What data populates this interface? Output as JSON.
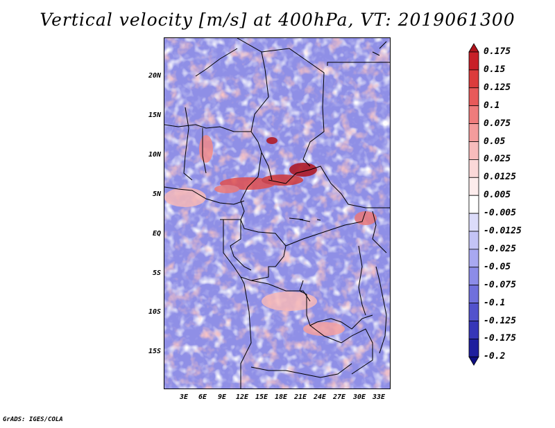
{
  "title": "Vertical velocity [m/s] at 400hPa, VT: 2019061300",
  "footer": "GrADS: IGES/COLA",
  "latitude_labels": [
    "20N",
    "15N",
    "10N",
    "5N",
    "EQ",
    "5S",
    "10S",
    "15S"
  ],
  "longitude_labels": [
    "3E",
    "6E",
    "9E",
    "12E",
    "15E",
    "18E",
    "21E",
    "24E",
    "27E",
    "30E",
    "33E"
  ],
  "colorbar": {
    "labels": [
      "0.175",
      "0.15",
      "0.125",
      "0.1",
      "0.075",
      "0.05",
      "0.025",
      "0.0125",
      "0.005",
      "-0.005",
      "-0.0125",
      "-0.025",
      "-0.05",
      "-0.075",
      "-0.1",
      "-0.125",
      "-0.175",
      "-0.2"
    ],
    "colors": [
      "#b0141c",
      "#c82028",
      "#dc3c3c",
      "#e85a5a",
      "#ef7c7c",
      "#f49c9c",
      "#f8bcbc",
      "#fbd8d8",
      "#fdecec",
      "#ffffff",
      "#dcdcfa",
      "#c4c4f6",
      "#a8a8f0",
      "#8c8ce8",
      "#7070dc",
      "#5252cc",
      "#3636b8",
      "#1e1e9e",
      "#0e0e82"
    ]
  },
  "field_colors": {
    "negative_base": "#8f8fe6",
    "negative_dark": "#6a6ad8",
    "negative_light": "#c8c8f6",
    "positive_light": "#f6b8b8",
    "positive_mid": "#ea7878",
    "positive_strong": "#b0141c",
    "neutral": "#ffffff",
    "border": "#000000"
  }
}
